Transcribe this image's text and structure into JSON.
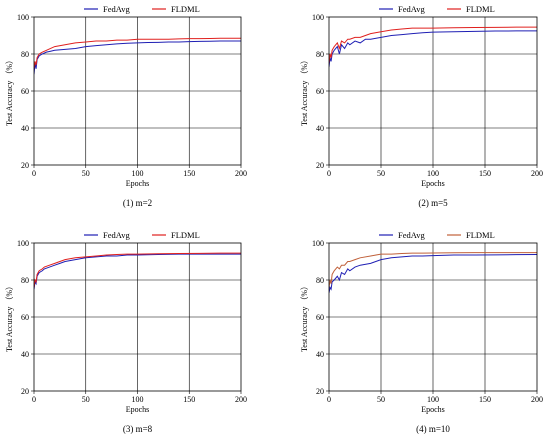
{
  "chart_data": [
    {
      "type": "line",
      "caption": "(1) m=2",
      "xlabel": "Epochs",
      "ylabel": "Test Accuracy （%）",
      "xlim": [
        0,
        200
      ],
      "ylim": [
        20,
        100
      ],
      "xticks": [
        0,
        50,
        100,
        150,
        200
      ],
      "yticks": [
        20,
        40,
        60,
        80,
        100
      ],
      "grid": true,
      "legend": "top-center",
      "series": [
        {
          "name": "FedAvg",
          "color": "#1f1fb4",
          "x": [
            0,
            1,
            2,
            3,
            5,
            8,
            12,
            16,
            20,
            30,
            40,
            50,
            60,
            70,
            80,
            90,
            100,
            110,
            120,
            130,
            140,
            150,
            160,
            170,
            180,
            190,
            200
          ],
          "y": [
            69,
            75,
            72,
            77,
            79,
            80,
            81,
            81.5,
            82,
            82.5,
            83,
            84,
            84.5,
            85,
            85.5,
            85.8,
            86,
            86.2,
            86.3,
            86.5,
            86.5,
            86.7,
            86.8,
            86.9,
            87,
            87,
            87
          ]
        },
        {
          "name": "FLDML",
          "color": "#e0201e",
          "x": [
            0,
            1,
            2,
            3,
            5,
            8,
            12,
            16,
            20,
            30,
            40,
            50,
            60,
            70,
            80,
            90,
            100,
            110,
            120,
            130,
            140,
            150,
            160,
            170,
            180,
            190,
            200
          ],
          "y": [
            72,
            76,
            74,
            78,
            80,
            81,
            82,
            83,
            84,
            85,
            86,
            86.5,
            87,
            87,
            87.5,
            87.5,
            88,
            88,
            88,
            88,
            88.2,
            88.3,
            88.3,
            88.4,
            88.5,
            88.5,
            88.5
          ]
        }
      ]
    },
    {
      "type": "line",
      "caption": "(2) m=5",
      "xlabel": "Epochs",
      "ylabel": "Test Accuracy （%）",
      "xlim": [
        0,
        200
      ],
      "ylim": [
        20,
        100
      ],
      "xticks": [
        0,
        50,
        100,
        150,
        200
      ],
      "yticks": [
        20,
        40,
        60,
        80,
        100
      ],
      "grid": true,
      "legend": "top-center",
      "series": [
        {
          "name": "FedAvg",
          "color": "#1f1fb4",
          "x": [
            0,
            1,
            2,
            3,
            5,
            8,
            10,
            12,
            15,
            18,
            20,
            25,
            30,
            35,
            40,
            50,
            60,
            70,
            80,
            90,
            100,
            120,
            140,
            160,
            180,
            200
          ],
          "y": [
            73,
            78,
            76,
            80,
            82,
            84,
            80,
            85,
            83,
            86,
            85,
            87,
            86,
            88,
            88,
            89,
            90,
            90.5,
            91,
            91.5,
            91.8,
            92,
            92.2,
            92.4,
            92.5,
            92.5
          ]
        },
        {
          "name": "FLDML",
          "color": "#e0201e",
          "x": [
            0,
            1,
            2,
            3,
            5,
            8,
            10,
            12,
            15,
            18,
            20,
            25,
            30,
            35,
            40,
            50,
            60,
            70,
            80,
            90,
            100,
            120,
            140,
            160,
            180,
            200
          ],
          "y": [
            75,
            80,
            78,
            82,
            84,
            86,
            83,
            87,
            86,
            88,
            88,
            89,
            89,
            90,
            91,
            92,
            93,
            93.5,
            94,
            94,
            94,
            94.2,
            94.3,
            94.4,
            94.5,
            94.5
          ]
        }
      ]
    },
    {
      "type": "line",
      "caption": "(3) m=8",
      "xlabel": "Epochs",
      "ylabel": "Test Accuracy （%）",
      "xlim": [
        0,
        200
      ],
      "ylim": [
        20,
        100
      ],
      "xticks": [
        0,
        50,
        100,
        150,
        200
      ],
      "yticks": [
        20,
        40,
        60,
        80,
        100
      ],
      "grid": true,
      "legend": "top-center",
      "series": [
        {
          "name": "FedAvg",
          "color": "#1f1fb4",
          "x": [
            0,
            1,
            2,
            3,
            5,
            8,
            10,
            15,
            20,
            25,
            30,
            40,
            50,
            60,
            70,
            80,
            90,
            100,
            120,
            140,
            160,
            180,
            200
          ],
          "y": [
            75,
            79,
            78,
            82,
            84,
            85,
            86,
            87,
            88,
            89,
            90,
            91,
            92,
            92.5,
            93,
            93,
            93.5,
            93.5,
            93.8,
            94,
            94,
            94,
            94
          ]
        },
        {
          "name": "FLDML",
          "color": "#e0201e",
          "x": [
            0,
            1,
            2,
            3,
            5,
            8,
            10,
            15,
            20,
            25,
            30,
            40,
            50,
            60,
            70,
            80,
            90,
            100,
            120,
            140,
            160,
            180,
            200
          ],
          "y": [
            76,
            80,
            79,
            83,
            85,
            86,
            87,
            88,
            89,
            90,
            91,
            92,
            92.5,
            93,
            93.5,
            93.8,
            94,
            94,
            94.2,
            94.3,
            94.4,
            94.5,
            94.5
          ]
        }
      ]
    },
    {
      "type": "line",
      "caption": "(4) m=10",
      "xlabel": "Epochs",
      "ylabel": "Test Accuracy （%）",
      "xlim": [
        0,
        200
      ],
      "ylim": [
        20,
        100
      ],
      "xticks": [
        0,
        50,
        100,
        150,
        200
      ],
      "yticks": [
        20,
        40,
        60,
        80,
        100
      ],
      "grid": true,
      "legend": "top-center",
      "series": [
        {
          "name": "FedAvg",
          "color": "#1f1fb4",
          "x": [
            0,
            1,
            2,
            3,
            5,
            8,
            10,
            12,
            15,
            18,
            20,
            25,
            30,
            40,
            50,
            60,
            70,
            80,
            90,
            100,
            120,
            140,
            160,
            180,
            200
          ],
          "y": [
            73,
            76,
            75,
            79,
            80,
            82,
            80,
            84,
            83,
            86,
            85,
            87,
            88,
            89,
            91,
            92,
            92.5,
            93,
            93,
            93.2,
            93.5,
            93.5,
            93.6,
            93.7,
            93.8
          ]
        },
        {
          "name": "FLDML",
          "color": "#c0603a",
          "x": [
            0,
            1,
            2,
            3,
            5,
            8,
            10,
            12,
            15,
            18,
            20,
            25,
            30,
            40,
            50,
            60,
            70,
            80,
            90,
            100,
            120,
            140,
            160,
            180,
            200
          ],
          "y": [
            76,
            80,
            78,
            83,
            85,
            87,
            86,
            88,
            88,
            90,
            90,
            91,
            92,
            93,
            94,
            94,
            94.3,
            94.5,
            94.5,
            94.6,
            94.7,
            94.8,
            94.8,
            94.8,
            94.8
          ]
        }
      ]
    }
  ]
}
